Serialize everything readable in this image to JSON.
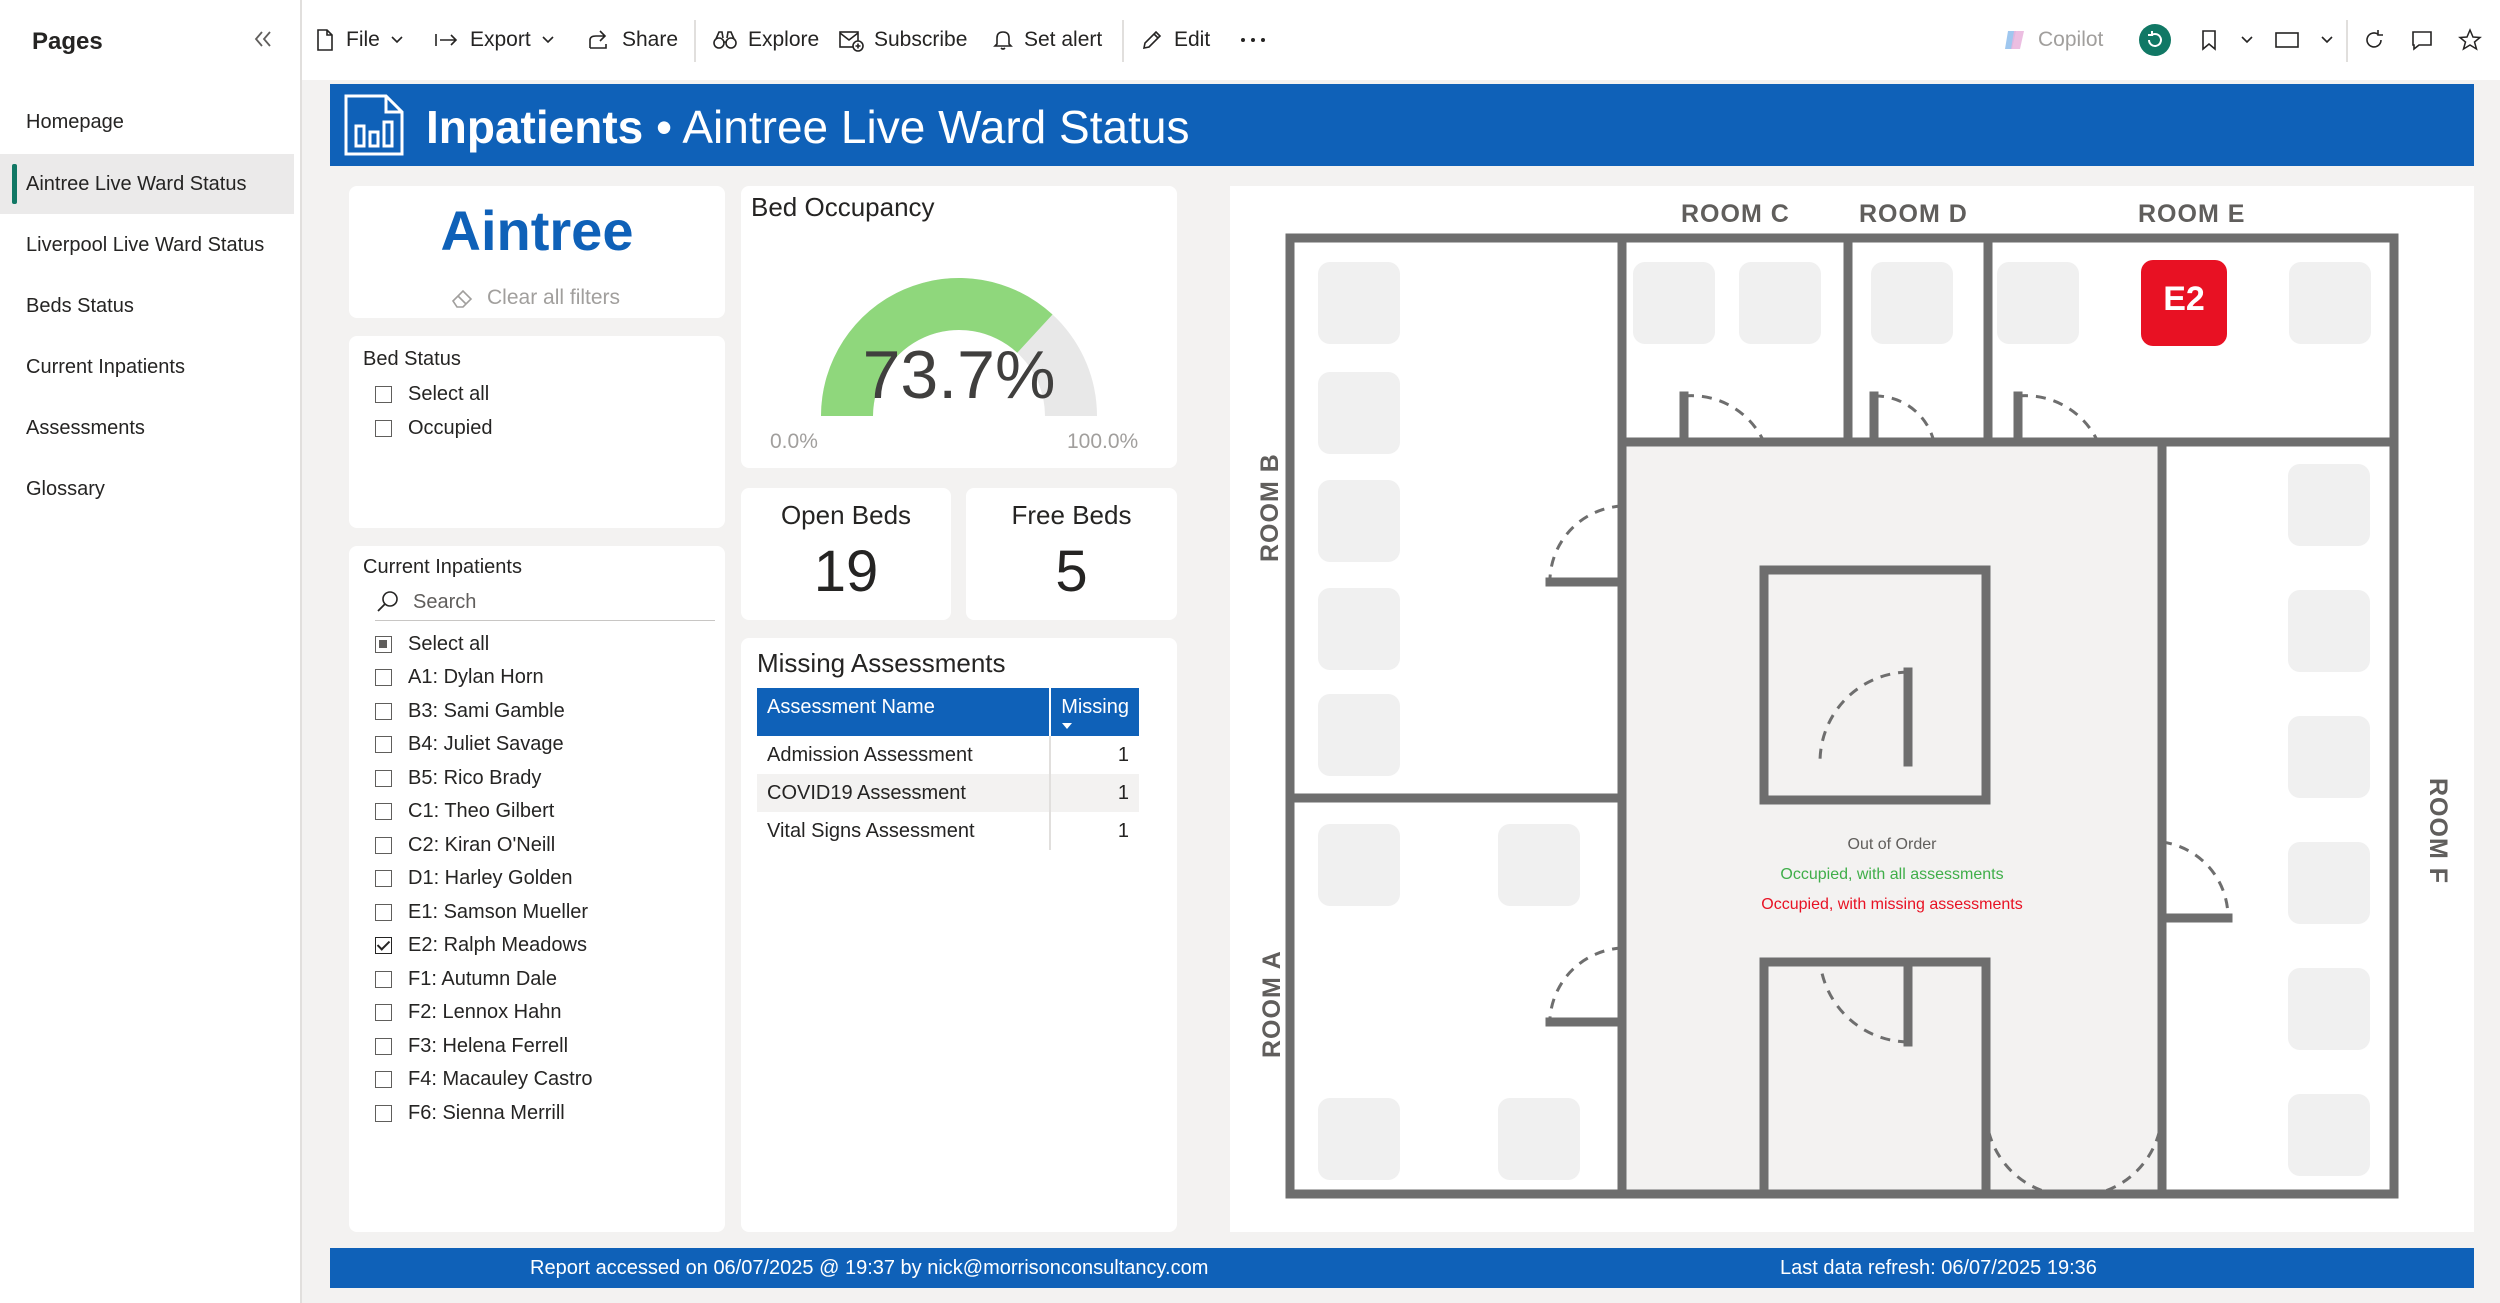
{
  "pages": {
    "title": "Pages",
    "items": [
      {
        "label": "Homepage"
      },
      {
        "label": "Aintree Live Ward Status",
        "active": true
      },
      {
        "label": "Liverpool Live Ward Status"
      },
      {
        "label": "Beds Status"
      },
      {
        "label": "Current Inpatients"
      },
      {
        "label": "Assessments"
      },
      {
        "label": "Glossary"
      }
    ]
  },
  "toolbar": {
    "file": "File",
    "export": "Export",
    "share": "Share",
    "explore": "Explore",
    "subscribe": "Subscribe",
    "set_alert": "Set alert",
    "edit": "Edit",
    "copilot": "Copilot"
  },
  "report": {
    "title_bold": "Inpatients",
    "title_rest": " • Aintree Live Ward Status"
  },
  "site_card": {
    "name": "Aintree",
    "clear_filters": "Clear all filters"
  },
  "bed_status": {
    "title": "Bed Status",
    "options": [
      {
        "label": "Select all",
        "state": "unchecked"
      },
      {
        "label": "Occupied",
        "state": "unchecked"
      }
    ]
  },
  "current_inpatients": {
    "title": "Current Inpatients",
    "search_placeholder": "Search",
    "options": [
      {
        "label": "Select all",
        "state": "partial"
      },
      {
        "label": "A1: Dylan Horn",
        "state": "unchecked"
      },
      {
        "label": "B3: Sami Gamble",
        "state": "unchecked"
      },
      {
        "label": "B4: Juliet Savage",
        "state": "unchecked"
      },
      {
        "label": "B5: Rico Brady",
        "state": "unchecked"
      },
      {
        "label": "C1: Theo Gilbert",
        "state": "unchecked"
      },
      {
        "label": "C2: Kiran O'Neill",
        "state": "unchecked"
      },
      {
        "label": "D1: Harley Golden",
        "state": "unchecked"
      },
      {
        "label": "E1: Samson Mueller",
        "state": "unchecked"
      },
      {
        "label": "E2: Ralph Meadows",
        "state": "checked"
      },
      {
        "label": "F1: Autumn Dale",
        "state": "unchecked"
      },
      {
        "label": "F2: Lennox Hahn",
        "state": "unchecked"
      },
      {
        "label": "F3: Helena Ferrell",
        "state": "unchecked"
      },
      {
        "label": "F4: Macauley Castro",
        "state": "unchecked"
      },
      {
        "label": "F6: Sienna Merrill",
        "state": "unchecked"
      }
    ]
  },
  "bed_occupancy": {
    "title": "Bed Occupancy",
    "value_label": "73.7%",
    "value": 73.7,
    "min_label": "0.0%",
    "max_label": "100.0%",
    "min": 0,
    "max": 100,
    "fill_color": "#8fd77c",
    "track_color": "#e8e8e8"
  },
  "open_beds": {
    "label": "Open Beds",
    "value": "19"
  },
  "free_beds": {
    "label": "Free Beds",
    "value": "5"
  },
  "missing_assessments": {
    "title": "Missing Assessments",
    "columns": [
      "Assessment Name",
      "Missing"
    ],
    "rows": [
      {
        "name": "Admission Assessment",
        "missing": "1"
      },
      {
        "name": "COVID19 Assessment",
        "missing": "1"
      },
      {
        "name": "Vital Signs Assessment",
        "missing": "1"
      }
    ]
  },
  "floorplan": {
    "rooms": {
      "a": "ROOM A",
      "b": "ROOM B",
      "c": "ROOM C",
      "d": "ROOM D",
      "e": "ROOM E",
      "f": "ROOM F"
    },
    "highlighted_bed": "E2",
    "highlight_color": "#e81123",
    "legend": {
      "out_of_order": "Out of Order",
      "occupied_all": "Occupied, with all assessments",
      "occupied_missing": "Occupied, with missing assessments",
      "out_of_order_color": "#605e5c",
      "occupied_all_color": "#3fae49",
      "occupied_missing_color": "#e81123"
    }
  },
  "footer": {
    "accessed": "Report accessed on 06/07/2025 @ 19:37 by nick@morrisonconsultancy.com",
    "refresh": "Last data refresh: 06/07/2025 19:36"
  }
}
